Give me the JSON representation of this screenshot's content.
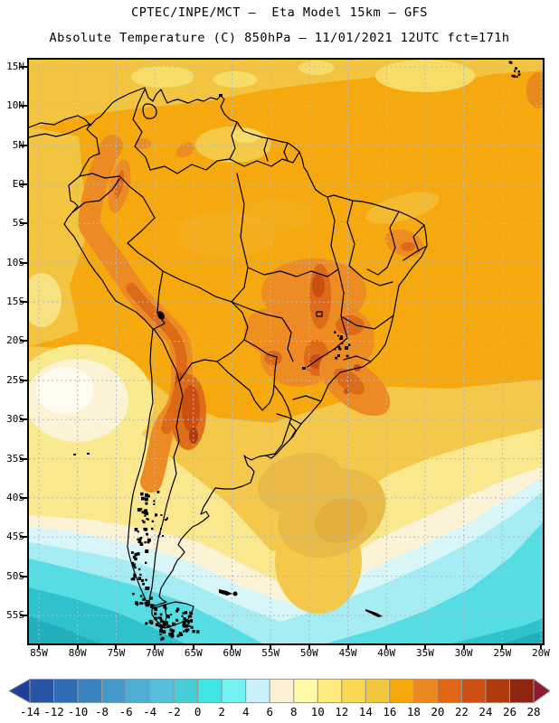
{
  "title": {
    "line1": "CPTEC/INPE/MCT —  Eta Model 15km — GFS",
    "line2": "Absolute Temperature (C) 850hPa — 11/01/2021 12UTC fct=171h"
  },
  "axes": {
    "lat": [
      "15N",
      "10N",
      "5N",
      "EQ",
      "5S",
      "10S",
      "15S",
      "20S",
      "25S",
      "30S",
      "35S",
      "40S",
      "45S",
      "50S",
      "55S"
    ],
    "lon": [
      "85W",
      "80W",
      "75W",
      "70W",
      "65W",
      "60W",
      "55W",
      "50W",
      "45W",
      "40W",
      "35W",
      "30W",
      "25W",
      "20W"
    ]
  },
  "colorbar": {
    "labels": [
      "-14",
      "-12",
      "-10",
      "-8",
      "-6",
      "-4",
      "-2",
      "0",
      "2",
      "4",
      "6",
      "8",
      "10",
      "12",
      "14",
      "16",
      "18",
      "20",
      "22",
      "24",
      "26",
      "28"
    ],
    "cells": [
      "#2A55A5",
      "#2F6CB3",
      "#3A84C0",
      "#4598CA",
      "#4FACD3",
      "#55BEDA",
      "#47CDD6",
      "#40E4E4",
      "#74F0F0",
      "#C8F0FA",
      "#FBF0D0",
      "#FDF9A6",
      "#FCEA7C",
      "#F8D852",
      "#F0C63E",
      "#F6A70B",
      "#EC8822",
      "#DE6614",
      "#CD5012",
      "#B03C0E",
      "#8E2510"
    ],
    "left_arrow": "#1F3E99",
    "right_arrow": "#8E1A34"
  },
  "chart_data": {
    "type": "heatmap",
    "title": "CPTEC/INPE/MCT — Eta Model 15km — GFS",
    "subtitle": "Absolute Temperature (C) 850hPa — 11/01/2021 12UTC fct=171h",
    "variable": "Absolute Temperature",
    "units": "C",
    "level": "850hPa",
    "model": "Eta Model 15km — GFS",
    "institution": "CPTEC/INPE/MCT",
    "run_date": "11/01/2021",
    "run_time": "12UTC",
    "forecast": "fct=171h",
    "x_ticks": [
      "85W",
      "80W",
      "75W",
      "70W",
      "65W",
      "60W",
      "55W",
      "50W",
      "45W",
      "40W",
      "35W",
      "30W",
      "25W",
      "20W"
    ],
    "y_ticks": [
      "15N",
      "10N",
      "5N",
      "EQ",
      "5S",
      "10S",
      "15S",
      "20S",
      "25S",
      "30S",
      "35S",
      "40S",
      "45S",
      "50S",
      "55S"
    ],
    "x_range_deg_lon": [
      -85,
      -20
    ],
    "y_range_deg_lat": [
      16,
      -58
    ],
    "grid": "dashed 5-degree lat/lon graticule",
    "legend_position": "bottom horizontal colorbar with end arrows",
    "colorbar_levels_c": [
      -14,
      -12,
      -10,
      -8,
      -6,
      -4,
      -2,
      0,
      2,
      4,
      6,
      8,
      10,
      12,
      14,
      16,
      18,
      20,
      22,
      24,
      26,
      28
    ],
    "colorbar_colors": [
      "#2A55A5",
      "#2F6CB3",
      "#3A84C0",
      "#4598CA",
      "#4FACD3",
      "#55BEDA",
      "#47CDD6",
      "#40E4E4",
      "#74F0F0",
      "#C8F0FA",
      "#FBF0D0",
      "#FDF9A6",
      "#FCEA7C",
      "#F8D852",
      "#F0C63E",
      "#F6A70B",
      "#EC8822",
      "#DE6614",
      "#CD5012",
      "#B03C0E",
      "#8E2510"
    ],
    "field_readings": [
      {
        "region": "Caribbean / northern coastal band (10N-16N)",
        "approx_temp_c": "14 to 16"
      },
      {
        "region": "Amazon basin and tropical Atlantic",
        "approx_temp_c": "16 to 18"
      },
      {
        "region": "Andes cordillera Colombia-Peru-Bolivia",
        "approx_temp_c": "18 to 22"
      },
      {
        "region": "NW Argentina / Altiplano core",
        "approx_temp_c": "22 to 26"
      },
      {
        "region": "Central Brazil (Goias/Tocantins/Minas)",
        "approx_temp_c": "18 to 24"
      },
      {
        "region": "Southeast Brazil coast",
        "approx_temp_c": "18 to 22"
      },
      {
        "region": "Northeast Argentina / Paraguay",
        "approx_temp_c": "12 to 16"
      },
      {
        "region": "Pacific anticyclone area off N Chile (~28S)",
        "approx_temp_c": "6 to 8"
      },
      {
        "region": "Patagonia",
        "approx_temp_c": "4 to 8"
      },
      {
        "region": "Southern Ocean south of ~48S",
        "approx_temp_c": "-2 to 4"
      }
    ]
  }
}
